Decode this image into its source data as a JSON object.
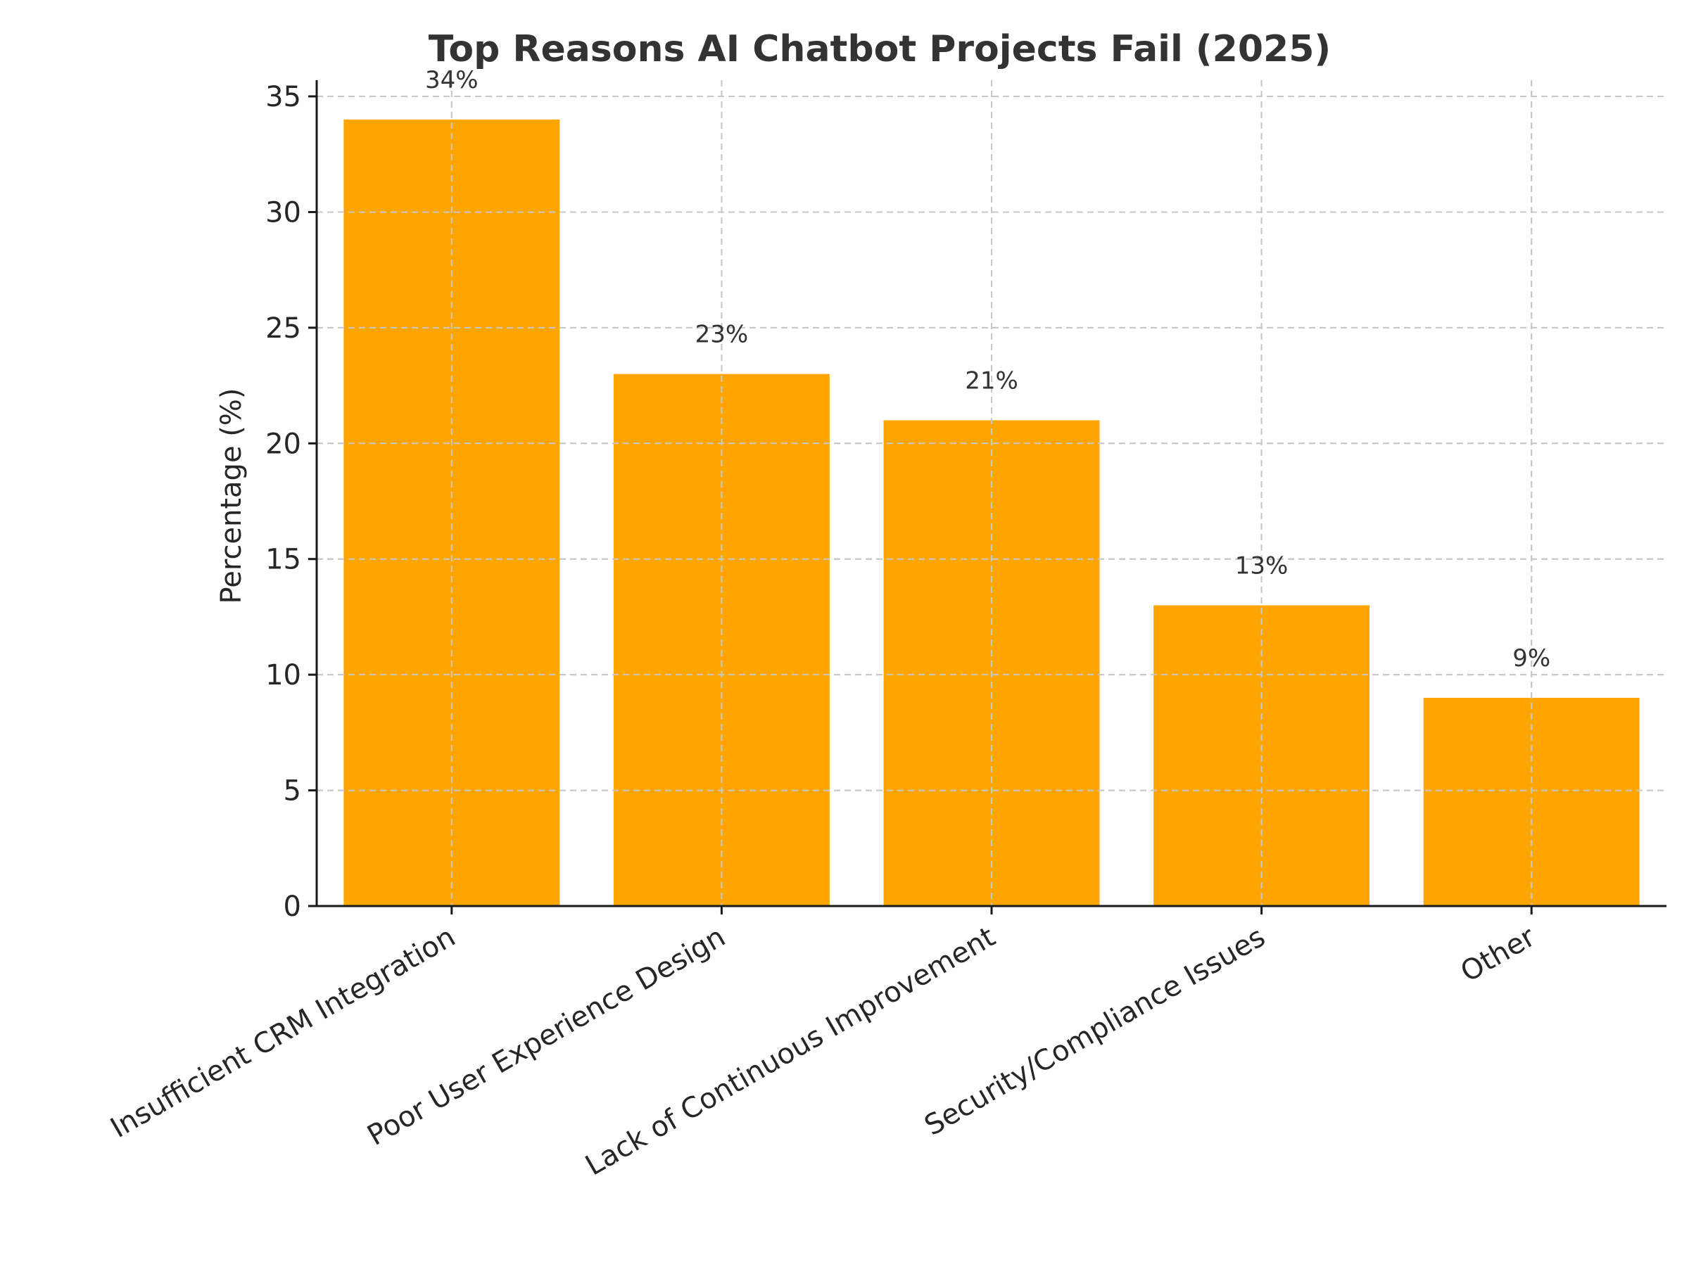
{
  "chart_data": {
    "type": "bar",
    "title": "Top Reasons AI Chatbot Projects Fail (2025)",
    "xlabel": "",
    "ylabel": "Percentage (%)",
    "categories": [
      "Insufficient CRM Integration",
      "Poor User Experience Design",
      "Lack of Continuous Improvement",
      "Security/Compliance Issues",
      "Other"
    ],
    "values": [
      34,
      23,
      21,
      13,
      9
    ],
    "value_labels": [
      "34%",
      "23%",
      "21%",
      "13%",
      "9%"
    ],
    "ylim": [
      0,
      35.7
    ],
    "yticks": [
      0,
      5,
      10,
      15,
      20,
      25,
      30,
      35
    ],
    "grid": true,
    "bar_color": "#FFA500"
  }
}
